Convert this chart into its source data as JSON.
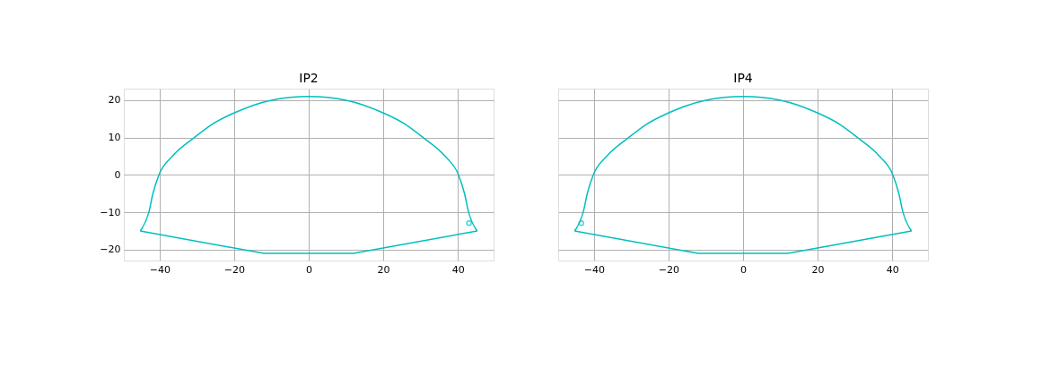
{
  "chart_data": [
    {
      "type": "line",
      "title": "IP2",
      "xlim": [
        -49.6,
        49.6
      ],
      "ylim": [
        -22.9,
        23.1
      ],
      "xticks": [
        -40,
        -20,
        0,
        20,
        40
      ],
      "yticks": [
        -20,
        -10,
        0,
        10,
        20
      ],
      "grid": true,
      "series": [
        {
          "color": "#00bfbf",
          "x": [
            -45.2,
            -42.9,
            -41.8,
            -40.2,
            -36.6,
            -30.7,
            -26,
            -20.2,
            -10,
            0,
            10,
            20.2,
            26,
            30.7,
            36.6,
            40.2,
            41.8,
            42.9,
            45.2
          ],
          "values": [
            -15,
            -10,
            -5,
            0,
            5,
            10,
            13.5,
            16.5,
            20,
            21,
            20,
            16.5,
            13.5,
            10,
            5,
            0,
            -5,
            -10,
            -15
          ]
        },
        {
          "color": "#00bfbf",
          "x": [
            -45.2,
            -12,
            12,
            45.2
          ],
          "values": [
            -15,
            -21,
            -21,
            -15
          ]
        },
        {
          "type": "scatter",
          "color": "#00bfbf",
          "marker": "circle",
          "x": [
            43.0
          ],
          "values": [
            -12.9
          ]
        }
      ]
    },
    {
      "type": "line",
      "title": "IP4",
      "xlim": [
        -49.6,
        49.6
      ],
      "ylim": [
        -22.9,
        23.1
      ],
      "xticks": [
        -40,
        -20,
        0,
        20,
        40
      ],
      "yticks": [
        -20,
        -10,
        0,
        10,
        20
      ],
      "grid": true,
      "tick_labels": "x",
      "series": [
        {
          "color": "#00bfbf",
          "x": [
            -45.2,
            -42.9,
            -41.8,
            -40.2,
            -36.6,
            -30.7,
            -26,
            -20.2,
            -10,
            0,
            10,
            20.2,
            26,
            30.7,
            36.6,
            40.2,
            41.8,
            42.9,
            45.2
          ],
          "values": [
            -15,
            -10,
            -5,
            0,
            5,
            10,
            13.5,
            16.5,
            20,
            21,
            20,
            16.5,
            13.5,
            10,
            5,
            0,
            -5,
            -10,
            -15
          ]
        },
        {
          "color": "#00bfbf",
          "x": [
            -45.2,
            -12,
            12,
            45.2
          ],
          "values": [
            -15,
            -21,
            -21,
            -15
          ]
        },
        {
          "type": "scatter",
          "color": "#00bfbf",
          "marker": "circle",
          "x": [
            -43.4
          ],
          "values": [
            -12.9
          ]
        }
      ]
    }
  ]
}
